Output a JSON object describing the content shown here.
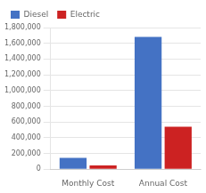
{
  "chart_data": {
    "type": "bar",
    "categories": [
      "Monthly Cost",
      "Annual Cost"
    ],
    "series": [
      {
        "name": "Diesel",
        "color": "#4472C4",
        "values": [
          145000,
          1680000
        ]
      },
      {
        "name": "Electric",
        "color": "#CC2222",
        "values": [
          48000,
          540000
        ]
      }
    ],
    "ylim": [
      0,
      1800000
    ],
    "yticks": [
      0,
      {
        "value": 200000,
        "label": "200,000"
      },
      {
        "value": 400000,
        "label": "400,000"
      },
      {
        "value": 600000,
        "label": "600,000"
      },
      {
        "value": 800000,
        "label": "800,000"
      },
      {
        "value": 1000000,
        "label": "1,000,000"
      },
      {
        "value": 1200000,
        "label": "1,200,000"
      },
      {
        "value": 1400000,
        "label": "1,400,000"
      },
      {
        "value": 1600000,
        "label": "1,600,000"
      },
      {
        "value": 1800000,
        "label": "1,800,000"
      }
    ],
    "grid": true,
    "legend": "upper left"
  }
}
